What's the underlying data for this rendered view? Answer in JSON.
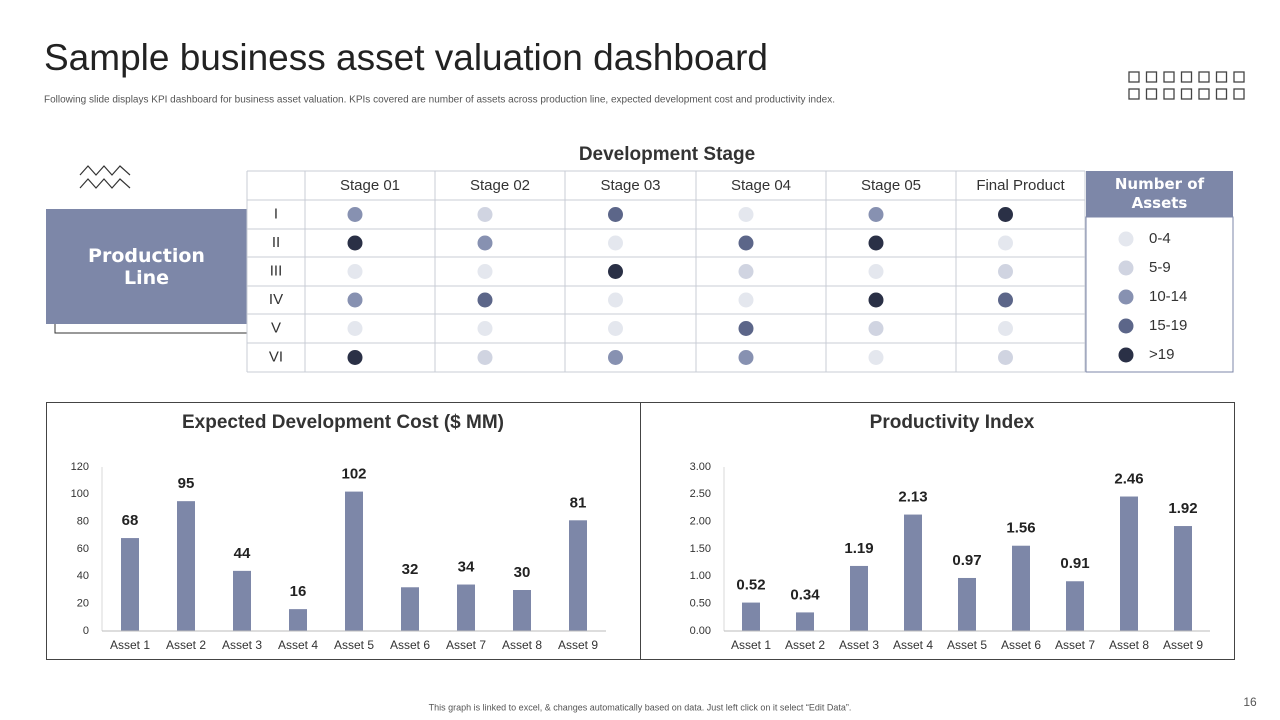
{
  "header": {
    "title": "Sample business asset valuation dashboard",
    "subtitle": "Following slide displays KPI dashboard for business asset valuation. KPIs covered are number of assets across production line, expected development cost and productivity index."
  },
  "matrix": {
    "title": "Development Stage",
    "side_label": "Production Line",
    "columns": [
      "Stage 01",
      "Stage 02",
      "Stage 03",
      "Stage 04",
      "Stage 05",
      "Final Product"
    ],
    "rows": [
      "I",
      "II",
      "III",
      "IV",
      "V",
      "VI"
    ],
    "cells": [
      [
        2,
        1,
        3,
        0,
        2,
        4
      ],
      [
        4,
        2,
        0,
        3,
        4,
        0
      ],
      [
        0,
        0,
        4,
        1,
        0,
        1
      ],
      [
        2,
        3,
        0,
        0,
        4,
        3
      ],
      [
        0,
        0,
        0,
        3,
        1,
        0
      ],
      [
        4,
        1,
        2,
        2,
        0,
        1
      ]
    ]
  },
  "legend": {
    "title": "Number of Assets",
    "items": [
      {
        "label": "0-4",
        "color": "#e4e7ee"
      },
      {
        "label": "5-9",
        "color": "#d0d4e1"
      },
      {
        "label": "10-14",
        "color": "#8791b1"
      },
      {
        "label": "15-19",
        "color": "#5c6689"
      },
      {
        "label": ">19",
        "color": "#2a3046"
      }
    ]
  },
  "chart_data": [
    {
      "type": "bar",
      "title": "Expected Development Cost ($ MM)",
      "categories": [
        "Asset 1",
        "Asset 2",
        "Asset 3",
        "Asset 4",
        "Asset 5",
        "Asset 6",
        "Asset 7",
        "Asset 8",
        "Asset 9"
      ],
      "values": [
        68,
        95,
        44,
        16,
        102,
        32,
        34,
        30,
        81
      ],
      "color": "#7d87a8",
      "ylim": [
        0,
        120
      ],
      "yticks": [
        0,
        20,
        40,
        60,
        80,
        100,
        120
      ],
      "grid": false
    },
    {
      "type": "bar",
      "title": "Productivity Index",
      "categories": [
        "Asset 1",
        "Asset 2",
        "Asset 3",
        "Asset 4",
        "Asset 5",
        "Asset 6",
        "Asset 7",
        "Asset 8",
        "Asset 9"
      ],
      "values": [
        0.52,
        0.34,
        1.19,
        2.13,
        0.97,
        1.56,
        0.91,
        2.46,
        1.92
      ],
      "color": "#7d87a8",
      "ylim": [
        0,
        3
      ],
      "yticks": [
        {
          "value": 0,
          "label": "0.00"
        },
        {
          "value": 0.5,
          "label": "0.50"
        },
        {
          "value": 1,
          "label": "1.00"
        },
        {
          "value": 1.5,
          "label": "1.50"
        },
        {
          "value": 2,
          "label": "2.00"
        },
        {
          "value": 2.5,
          "label": "2.50"
        },
        {
          "value": 3,
          "label": "3.00"
        }
      ],
      "grid": false
    }
  ],
  "footer": {
    "note": "This graph is linked to excel, & changes automatically based on data. Just left click on it select “Edit Data”.",
    "page": "16"
  }
}
